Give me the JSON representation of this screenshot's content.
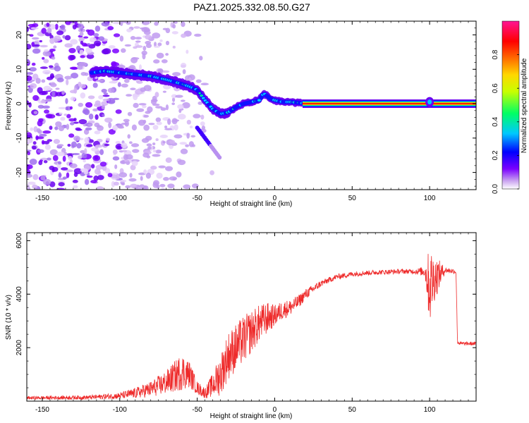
{
  "figure_title": "PAZ1.2025.332.08.50.G27",
  "chart_data": [
    {
      "type": "heatmap",
      "xlabel": "Height of straight line (km)",
      "ylabel": "Frequency (Hz)",
      "xlim": [
        -160,
        130
      ],
      "ylim": [
        -25,
        24
      ],
      "xticks": [
        -150,
        -100,
        -50,
        0,
        50,
        100
      ],
      "yticks": [
        -20,
        -10,
        0,
        10,
        20
      ],
      "xtick_labels": [
        "-150",
        "-100",
        "-50",
        "0",
        "50",
        "100"
      ],
      "ytick_labels": [
        "-20",
        "-10",
        "0",
        "10",
        "20"
      ],
      "colorbar": {
        "label": "Normalized spectral amplitude",
        "range": [
          0,
          1
        ],
        "ticks": [
          0,
          0.2,
          0.4,
          0.6,
          0.8
        ],
        "tick_labels": [
          "0.0",
          "0.2",
          "0.4",
          "0.6",
          "0.8"
        ],
        "colormap": [
          "#ffffff",
          "#c8a0f0",
          "#7a00ff",
          "#0000ff",
          "#00c8ff",
          "#00ff64",
          "#c8ff00",
          "#ffd700",
          "#ff6a00",
          "#ff0000",
          "#ff1493"
        ]
      },
      "ridge": {
        "x": [
          -118,
          -110,
          -100,
          -90,
          -80,
          -70,
          -62,
          -55,
          -50,
          -45,
          -40,
          -35,
          -30,
          -25,
          -20,
          -15,
          -10,
          -7,
          -3,
          0,
          5,
          10,
          15,
          20,
          30,
          50,
          80,
          95,
          100,
          105,
          130
        ],
        "y": [
          9,
          9.5,
          9,
          8.5,
          8,
          7,
          6,
          5,
          4,
          1,
          -1.5,
          -3,
          -2.5,
          -1,
          0,
          0.5,
          1,
          3,
          1.5,
          1,
          0.5,
          0.5,
          0.3,
          0,
          0,
          0,
          0,
          0,
          0.5,
          0,
          0
        ]
      },
      "branch": {
        "x": [
          -50,
          -45,
          -40,
          -35
        ],
        "y": [
          -7,
          -10,
          -13,
          -16
        ]
      }
    },
    {
      "type": "line",
      "xlabel": "Height of straight line (km)",
      "ylabel": "SNR (10 * v/v)",
      "xlim": [
        -160,
        130
      ],
      "ylim": [
        0,
        6300
      ],
      "xticks": [
        -150,
        -100,
        -50,
        0,
        50,
        100
      ],
      "yticks": [
        2000,
        4000,
        6000
      ],
      "xtick_labels": [
        "-150",
        "-100",
        "-50",
        "0",
        "50",
        "100"
      ],
      "ytick_labels": [
        "2000",
        "4000",
        "6000"
      ],
      "series_color": "#ff0000",
      "envelope": {
        "x": [
          -160,
          -120,
          -100,
          -90,
          -80,
          -70,
          -60,
          -55,
          -50,
          -45,
          -40,
          -35,
          -30,
          -25,
          -20,
          -15,
          -10,
          -5,
          0,
          5,
          10,
          15,
          20,
          30,
          40,
          50,
          60,
          80,
          90,
          97,
          100,
          103,
          110,
          117,
          118,
          120,
          130
        ],
        "mean": [
          120,
          140,
          200,
          300,
          450,
          700,
          1100,
          1000,
          500,
          300,
          600,
          1000,
          1700,
          2000,
          2300,
          2600,
          2900,
          3100,
          3200,
          3400,
          3500,
          3700,
          4000,
          4400,
          4650,
          4750,
          4800,
          4850,
          4850,
          4850,
          4300,
          4600,
          4900,
          4850,
          2200,
          2150,
          2150
        ],
        "noise": [
          60,
          80,
          120,
          200,
          300,
          450,
          700,
          500,
          250,
          200,
          450,
          800,
          900,
          900,
          900,
          800,
          700,
          600,
          400,
          350,
          300,
          250,
          200,
          120,
          100,
          100,
          90,
          90,
          90,
          200,
          1500,
          900,
          100,
          100,
          80,
          70,
          70
        ]
      }
    }
  ]
}
